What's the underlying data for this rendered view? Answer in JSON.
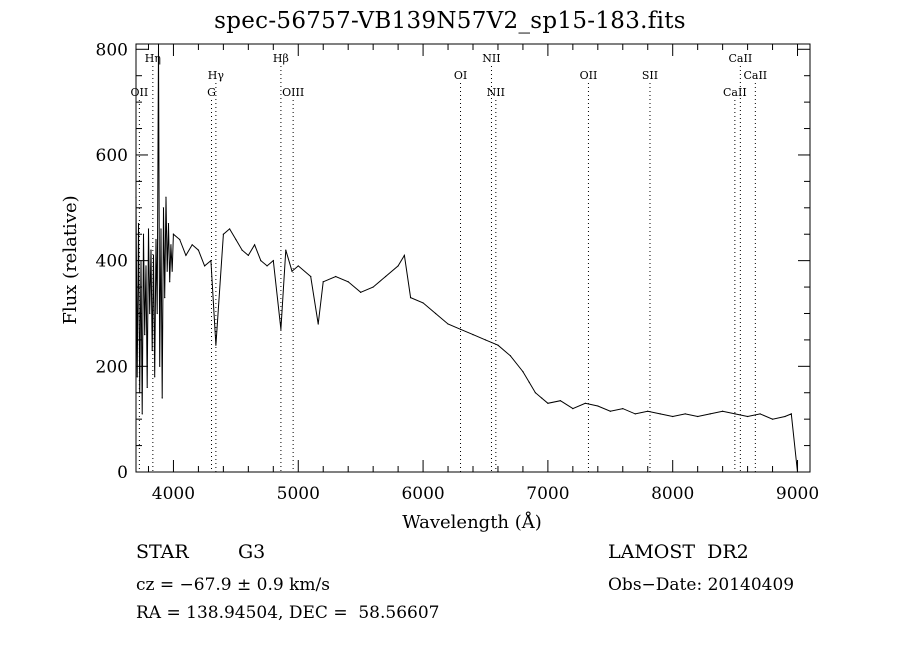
{
  "chart_data": {
    "type": "line",
    "title": "spec-56757-VB139N57V2_sp15-183.fits",
    "xlabel": "Wavelength (Å)",
    "ylabel": "Flux (relative)",
    "xlim": [
      3700,
      9100
    ],
    "ylim": [
      0,
      810
    ],
    "xticks": [
      4000,
      5000,
      6000,
      7000,
      8000,
      9000
    ],
    "yticks": [
      0,
      200,
      400,
      600,
      800
    ],
    "grid": false,
    "series": [
      {
        "x": [
          3700,
          3710,
          3720,
          3730,
          3740,
          3750,
          3760,
          3770,
          3780,
          3790,
          3800,
          3810,
          3820,
          3830,
          3840,
          3850,
          3860,
          3870,
          3880,
          3890,
          3900,
          3910,
          3920,
          3930,
          3940,
          3950,
          3960,
          3970,
          3980,
          3990,
          4000,
          4050,
          4100,
          4150,
          4200,
          4250,
          4300,
          4340,
          4400,
          4450,
          4500,
          4550,
          4600,
          4650,
          4700,
          4750,
          4800,
          4861,
          4900,
          4950,
          5000,
          5100,
          5160,
          5200,
          5300,
          5400,
          5500,
          5600,
          5700,
          5800,
          5850,
          5900,
          6000,
          6100,
          6200,
          6300,
          6400,
          6500,
          6600,
          6700,
          6800,
          6850,
          6900,
          6950,
          7000,
          7100,
          7200,
          7300,
          7400,
          7500,
          7600,
          7700,
          7800,
          7900,
          8000,
          8100,
          8200,
          8300,
          8400,
          8500,
          8600,
          8700,
          8800,
          8900,
          8950,
          9000
        ],
        "values": [
          520,
          180,
          470,
          150,
          400,
          110,
          450,
          260,
          390,
          160,
          460,
          300,
          420,
          230,
          410,
          180,
          440,
          300,
          810,
          200,
          460,
          140,
          500,
          330,
          520,
          380,
          470,
          360,
          430,
          380,
          450,
          440,
          410,
          430,
          420,
          390,
          400,
          240,
          450,
          460,
          440,
          420,
          410,
          430,
          400,
          390,
          400,
          270,
          420,
          380,
          390,
          370,
          280,
          360,
          370,
          360,
          340,
          350,
          370,
          390,
          410,
          330,
          320,
          300,
          280,
          270,
          260,
          250,
          240,
          220,
          190,
          170,
          150,
          140,
          130,
          135,
          120,
          130,
          125,
          115,
          120,
          110,
          115,
          110,
          105,
          110,
          105,
          110,
          115,
          110,
          105,
          110,
          100,
          105,
          110,
          0
        ]
      }
    ],
    "lines": [
      {
        "name": "OII",
        "x": 3727,
        "row": 3
      },
      {
        "name": "Hη",
        "x": 3835,
        "row": 1
      },
      {
        "name": "Hγ",
        "x": 4340,
        "row": 2
      },
      {
        "name": "G",
        "x": 4305,
        "row": 3
      },
      {
        "name": "Hβ",
        "x": 4861,
        "row": 1
      },
      {
        "name": "OIII",
        "x": 4959,
        "row": 3
      },
      {
        "name": "OI",
        "x": 6300,
        "row": 2
      },
      {
        "name": "NII",
        "x": 6548,
        "row": 1
      },
      {
        "name": "NII",
        "x": 6583,
        "row": 3
      },
      {
        "name": "OII",
        "x": 7325,
        "row": 2
      },
      {
        "name": "SII",
        "x": 7818,
        "row": 2
      },
      {
        "name": "CaII",
        "x": 8542,
        "row": 1
      },
      {
        "name": "CaII",
        "x": 8662,
        "row": 2
      },
      {
        "name": "CaII",
        "x": 8498,
        "row": 3
      }
    ]
  },
  "footer": {
    "object_type": "STAR",
    "subclass": "G3",
    "survey": "LAMOST  DR2",
    "cz": "cz = −67.9 ± 0.9 km/s",
    "obs_date": "Obs−Date: 20140409",
    "coords": "RA = 138.94504, DEC =  58.56607"
  }
}
